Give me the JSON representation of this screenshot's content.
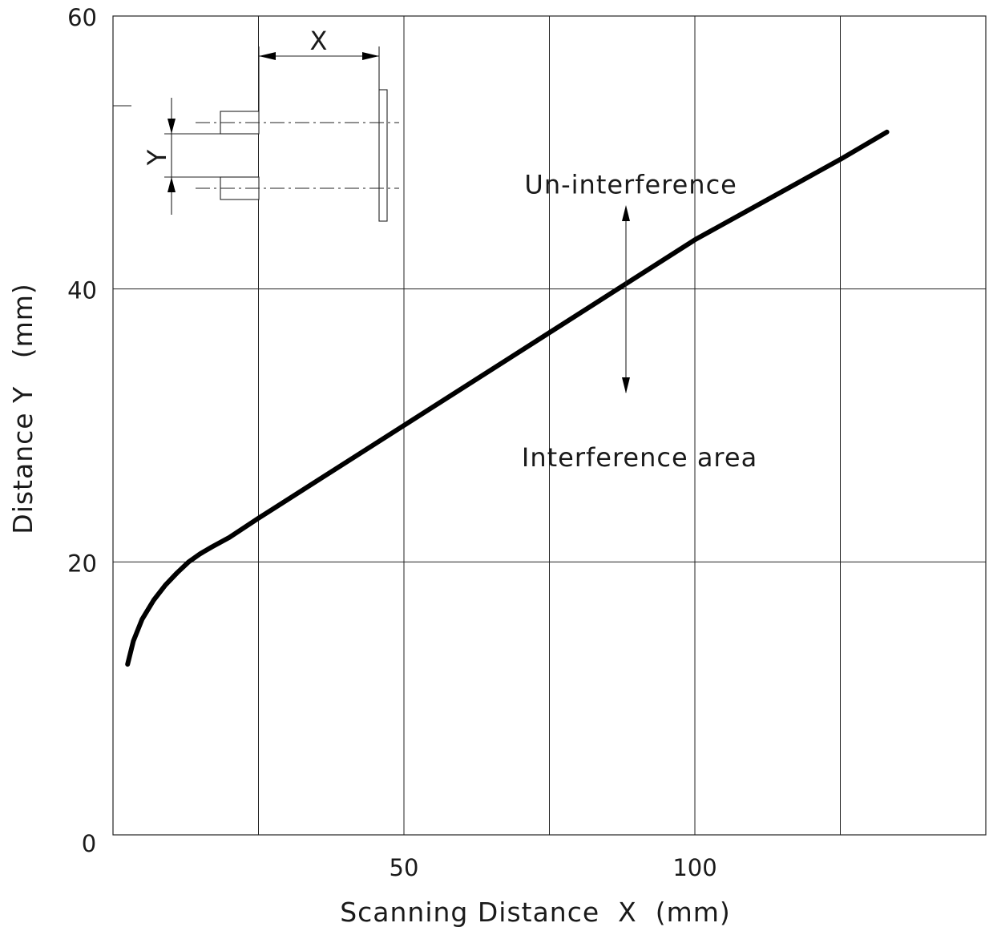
{
  "chart_data": {
    "type": "line",
    "title": "",
    "xlabel": "Scanning Distance  X  (mm)",
    "ylabel": "Distance Y   (mm)",
    "xlim": [
      0,
      150
    ],
    "ylim": [
      0,
      60
    ],
    "x_ticks": [
      {
        "value": 0,
        "label": "0"
      },
      {
        "value": 50,
        "label": "50"
      },
      {
        "value": 100,
        "label": "100"
      }
    ],
    "y_ticks": [
      {
        "value": 20,
        "label": "20"
      },
      {
        "value": 40,
        "label": "40"
      },
      {
        "value": 60,
        "label": "60"
      }
    ],
    "x_gridlines": [
      25,
      50,
      75,
      100,
      125
    ],
    "y_gridlines": [
      20,
      40
    ],
    "grid": true,
    "series": [
      {
        "x": [
          2.5,
          3.5,
          5,
          7,
          9,
          11,
          13,
          15,
          17,
          20,
          25,
          50,
          75,
          100,
          125,
          133
        ],
        "y": [
          12.5,
          14.2,
          15.8,
          17.2,
          18.3,
          19.2,
          20.0,
          20.6,
          21.1,
          21.8,
          23.2,
          30.0,
          36.8,
          43.6,
          49.5,
          51.5
        ]
      }
    ],
    "annotations": [
      {
        "text": "Un-interference",
        "x": 89,
        "y": 47
      },
      {
        "text": "Interference area",
        "x": 90.5,
        "y": 27
      }
    ],
    "inset_diagram": {
      "dimension_x_label": "X",
      "dimension_y_label": "Y"
    }
  }
}
